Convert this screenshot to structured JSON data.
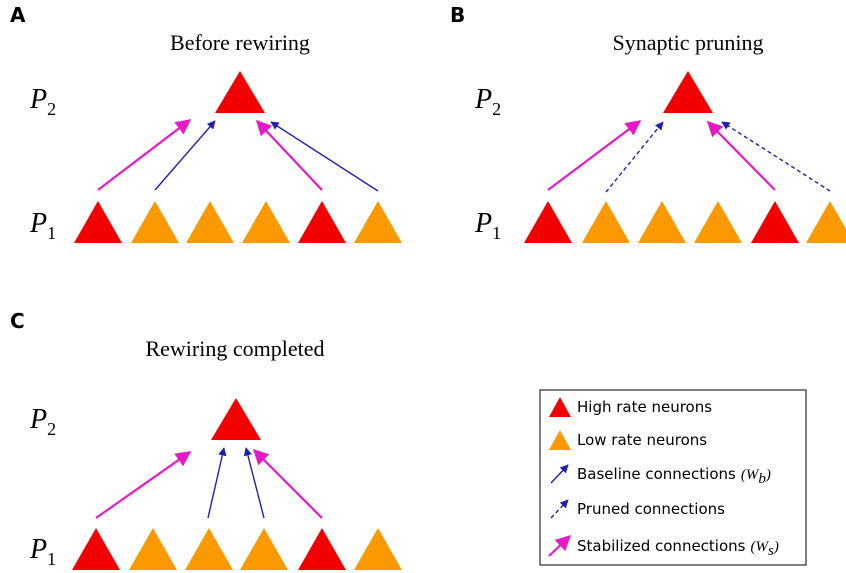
{
  "panels": [
    {
      "letter": "A",
      "title": "Before rewiring",
      "top_label": {
        "symbol": "P",
        "subscript": "2"
      },
      "bottom_label": {
        "symbol": "P",
        "subscript": "1"
      }
    },
    {
      "letter": "B",
      "title": "Synaptic pruning",
      "top_label": {
        "symbol": "P",
        "subscript": "2"
      },
      "bottom_label": {
        "symbol": "P",
        "subscript": "1"
      }
    },
    {
      "letter": "C",
      "title": "Rewiring completed",
      "top_label": {
        "symbol": "P",
        "subscript": "2"
      },
      "bottom_label": {
        "symbol": "P",
        "subscript": "1"
      }
    }
  ],
  "legend": [
    {
      "text": "High rate neurons"
    },
    {
      "text": "Low rate neurons"
    },
    {
      "text": "Baseline connections",
      "math_open": "(W",
      "subscript": "b",
      "math_close": ")"
    },
    {
      "text": "Pruned connections"
    },
    {
      "text": "Stabilized connections",
      "math_open": "(W",
      "subscript": "s",
      "math_close": ")"
    }
  ]
}
